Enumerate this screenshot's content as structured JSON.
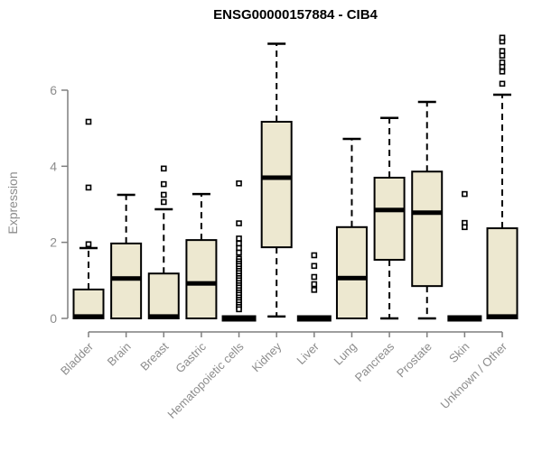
{
  "chart_data": {
    "type": "box",
    "title": "ENSG00000157884 - CIB4",
    "ylabel": "Expression",
    "xlabel": "",
    "ylim": [
      0,
      7.6
    ],
    "yticks": [
      0,
      2,
      4,
      6
    ],
    "grid": false,
    "legend": "none",
    "categories": [
      "Bladder",
      "Brain",
      "Breast",
      "Gastric",
      "Hematopoietic cells",
      "Kidney",
      "Liver",
      "Lung",
      "Pancreas",
      "Prostate",
      "Skin",
      "Unknown / Other"
    ],
    "series": [
      {
        "name": "Bladder",
        "low": 0,
        "q1": 0,
        "median": 0.05,
        "q3": 0.76,
        "high": 1.85,
        "outliers": [
          1.95,
          3.44,
          5.17
        ],
        "collapsed": false
      },
      {
        "name": "Brain",
        "low": 0,
        "q1": 0,
        "median": 1.05,
        "q3": 1.97,
        "high": 3.25,
        "outliers": [],
        "collapsed": false
      },
      {
        "name": "Breast",
        "low": 0,
        "q1": 0,
        "median": 0.05,
        "q3": 1.18,
        "high": 2.87,
        "outliers": [
          3.06,
          3.25,
          3.53,
          3.94
        ],
        "collapsed": false
      },
      {
        "name": "Gastric",
        "low": 0,
        "q1": 0,
        "median": 0.92,
        "q3": 2.06,
        "high": 3.27,
        "outliers": [],
        "collapsed": false
      },
      {
        "name": "Hematopoietic cells",
        "low": 0,
        "q1": 0,
        "median": 0,
        "q3": 0,
        "high": 0,
        "outliers": [
          3.55,
          2.5,
          2.1,
          1.97,
          1.85,
          1.73,
          1.57,
          1.5,
          1.44,
          1.38,
          1.31,
          1.25,
          1.19,
          1.12,
          1.06,
          1.0,
          0.93,
          0.87,
          0.81,
          0.74,
          0.68,
          0.62,
          0.55,
          0.49,
          0.43,
          0.36,
          0.3,
          0.24
        ],
        "collapsed": true
      },
      {
        "name": "Kidney",
        "low": 0.05,
        "q1": 1.87,
        "median": 3.7,
        "q3": 5.17,
        "high": 7.22,
        "outliers": [],
        "collapsed": false
      },
      {
        "name": "Liver",
        "low": 0,
        "q1": 0,
        "median": 0,
        "q3": 0,
        "high": 0,
        "outliers": [
          1.66,
          1.38,
          1.09,
          0.9,
          0.75
        ],
        "collapsed": true
      },
      {
        "name": "Lung",
        "low": 0,
        "q1": 0,
        "median": 1.06,
        "q3": 2.4,
        "high": 4.72,
        "outliers": [],
        "collapsed": false
      },
      {
        "name": "Pancreas",
        "low": 0,
        "q1": 1.54,
        "median": 2.85,
        "q3": 3.7,
        "high": 5.27,
        "outliers": [],
        "collapsed": false
      },
      {
        "name": "Prostate",
        "low": 0,
        "q1": 0.85,
        "median": 2.78,
        "q3": 3.86,
        "high": 5.69,
        "outliers": [],
        "collapsed": false
      },
      {
        "name": "Skin",
        "low": 0,
        "q1": 0,
        "median": 0,
        "q3": 0,
        "high": 0,
        "outliers": [
          3.27,
          2.51,
          2.4
        ],
        "collapsed": true
      },
      {
        "name": "Unknown / Other",
        "low": 0,
        "q1": 0,
        "median": 0.05,
        "q3": 2.37,
        "high": 5.88,
        "outliers": [
          6.17,
          6.49,
          6.62,
          6.73,
          6.91,
          7.03,
          7.28,
          7.38
        ],
        "collapsed": false
      }
    ],
    "colors": {
      "box_fill": "#EDE8D0",
      "box_stroke": "#000000",
      "median": "#000000",
      "whisker": "#000000",
      "outlier_stroke": "#000000",
      "axis": "#7f7f7f",
      "tick_label": "#8c8c8c",
      "title": "#000000",
      "background": "#ffffff"
    }
  }
}
